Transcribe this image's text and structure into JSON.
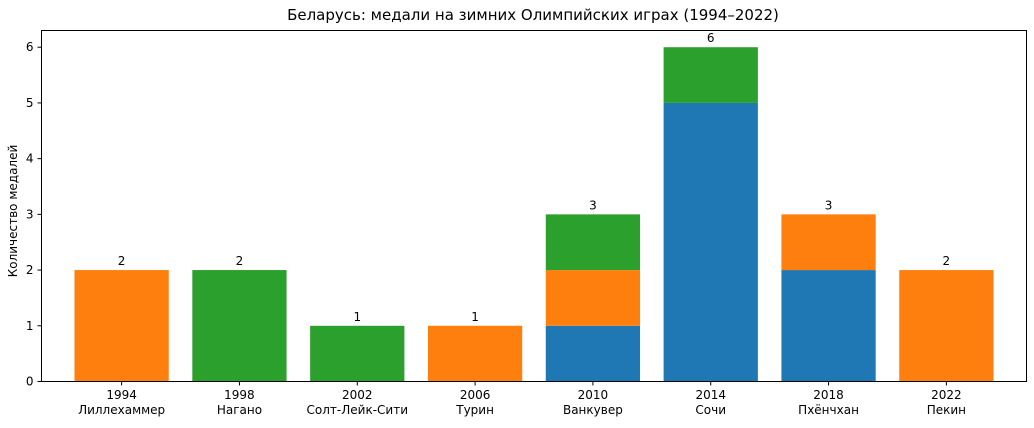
{
  "chart_data": {
    "type": "bar",
    "stacked": true,
    "title": "Беларусь: медали на зимних Олимпийских играх (1994–2022)",
    "xlabel": "",
    "ylabel": "Количество медалей",
    "ylim": [
      0,
      6.3
    ],
    "yticks": [
      0,
      1,
      2,
      3,
      4,
      5,
      6
    ],
    "grid": false,
    "legend": "none",
    "categories": [
      [
        "1994",
        "Лиллехаммер"
      ],
      [
        "1998",
        "Нагано"
      ],
      [
        "2002",
        "Солт-Лейк-Сити"
      ],
      [
        "2006",
        "Турин"
      ],
      [
        "2010",
        "Ванкувер"
      ],
      [
        "2014",
        "Сочи"
      ],
      [
        "2018",
        "Пхёнчхан"
      ],
      [
        "2022",
        "Пекин"
      ]
    ],
    "series": [
      {
        "color": "#1f77b4",
        "values": [
          0,
          0,
          0,
          0,
          1,
          5,
          2,
          0
        ]
      },
      {
        "color": "#ff7f0e",
        "values": [
          2,
          0,
          0,
          1,
          1,
          0,
          1,
          2
        ]
      },
      {
        "color": "#2ca02c",
        "values": [
          0,
          2,
          1,
          0,
          1,
          1,
          0,
          0
        ]
      }
    ],
    "totals": [
      "2",
      "2",
      "1",
      "1",
      "3",
      "6",
      "3",
      "2"
    ]
  }
}
